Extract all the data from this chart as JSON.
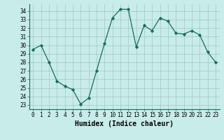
{
  "x": [
    0,
    1,
    2,
    3,
    4,
    5,
    6,
    7,
    8,
    9,
    10,
    11,
    12,
    13,
    14,
    15,
    16,
    17,
    18,
    19,
    20,
    21,
    22,
    23
  ],
  "y": [
    29.5,
    30.0,
    28.0,
    25.8,
    25.2,
    24.8,
    23.1,
    23.8,
    27.0,
    30.2,
    33.2,
    34.2,
    34.2,
    29.8,
    32.3,
    31.7,
    33.2,
    32.8,
    31.4,
    31.3,
    31.7,
    31.2,
    29.2,
    28.0
  ],
  "line_color": "#1a6b5a",
  "marker": "D",
  "marker_size": 2.2,
  "bg_color": "#c8ecea",
  "grid_color": "#9dc8c4",
  "xlabel": "Humidex (Indice chaleur)",
  "ylim": [
    22.5,
    34.8
  ],
  "xlim": [
    -0.5,
    23.5
  ],
  "yticks": [
    23,
    24,
    25,
    26,
    27,
    28,
    29,
    30,
    31,
    32,
    33,
    34
  ],
  "xticks": [
    0,
    1,
    2,
    3,
    4,
    5,
    6,
    7,
    8,
    9,
    10,
    11,
    12,
    13,
    14,
    15,
    16,
    17,
    18,
    19,
    20,
    21,
    22,
    23
  ],
  "tick_fontsize": 5.5,
  "label_fontsize": 7.0
}
